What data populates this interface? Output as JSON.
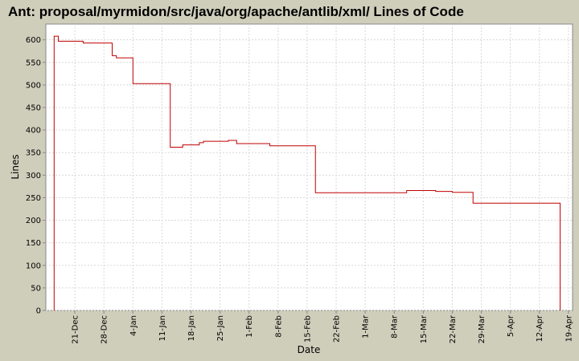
{
  "chart_data": {
    "type": "step",
    "title": "Ant: proposal/myrmidon/src/java/org/apache/antlib/xml/ Lines of Code",
    "x_label": "Date",
    "y_label": "Lines",
    "series": [
      {
        "name": "Lines",
        "color": "#c00000",
        "x": [
          "16-Dec",
          "16-Dec",
          "17-Dec",
          "23-Dec",
          "30-Dec",
          "31-Dec",
          "4-Jan",
          "13-Jan",
          "16-Jan",
          "20-Jan",
          "21-Jan",
          "27-Jan",
          "29-Jan",
          "6-Feb",
          "17-Feb",
          "11-Mar",
          "18-Mar",
          "22-Mar",
          "27-Mar",
          "17-Apr"
        ],
        "values": [
          0,
          608,
          597,
          593,
          565,
          560,
          503,
          362,
          367,
          372,
          375,
          377,
          370,
          365,
          261,
          266,
          264,
          262,
          238,
          0
        ]
      }
    ],
    "xlim": [
      "14-Dec",
      "20-Apr"
    ],
    "xticks": [
      "21-Dec",
      "28-Dec",
      "4-Jan",
      "11-Jan",
      "18-Jan",
      "25-Jan",
      "1-Feb",
      "8-Feb",
      "15-Feb",
      "22-Feb",
      "1-Mar",
      "8-Mar",
      "15-Mar",
      "22-Mar",
      "29-Mar",
      "5-Apr",
      "12-Apr",
      "19-Apr"
    ],
    "ylim": [
      0,
      635
    ],
    "yticks": [
      0,
      50,
      100,
      150,
      200,
      250,
      300,
      350,
      400,
      450,
      500,
      550,
      600
    ],
    "grid": true
  }
}
